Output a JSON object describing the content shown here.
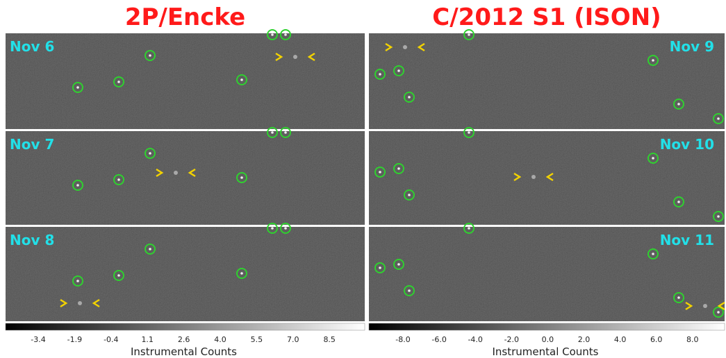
{
  "panels": [
    {
      "title": "2P/Encke",
      "frames": [
        "Nov 6",
        "Nov 7",
        "Nov 8"
      ],
      "colorbar": {
        "ticks": [
          "-3.4",
          "-1.9",
          "-0.4",
          "1.1",
          "2.6",
          "4.0",
          "5.5",
          "7.0",
          "8.5"
        ],
        "label": "Instrumental Counts"
      }
    },
    {
      "title": "C/2012 S1 (ISON)",
      "frames": [
        "Nov 9",
        "Nov 10",
        "Nov 11"
      ],
      "colorbar": {
        "ticks": [
          "-8.0",
          "-6.0",
          "-4.0",
          "-2.0",
          "0.0",
          "2.0",
          "4.0",
          "6.0",
          "8.0"
        ],
        "label": "Instrumental Counts"
      }
    }
  ]
}
